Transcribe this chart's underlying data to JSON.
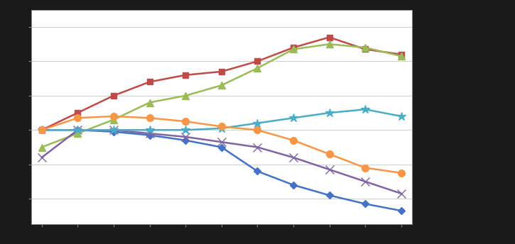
{
  "x_values": [
    1,
    2,
    3,
    4,
    5,
    6,
    7,
    8,
    9,
    10,
    11
  ],
  "series": [
    {
      "name": "",
      "color": "#4472C4",
      "marker": "D",
      "markersize": 5,
      "linewidth": 1.8,
      "values": [
        100,
        100,
        99,
        97,
        94,
        90,
        76,
        68,
        62,
        57,
        53
      ]
    },
    {
      "name": "",
      "color": "#BE4B48",
      "marker": "s",
      "markersize": 6,
      "linewidth": 1.8,
      "values": [
        100,
        110,
        120,
        128,
        132,
        134,
        140,
        148,
        154,
        147,
        144
      ]
    },
    {
      "name": "",
      "color": "#9BBB59",
      "marker": "^",
      "markersize": 7,
      "linewidth": 1.8,
      "values": [
        90,
        98,
        106,
        116,
        120,
        126,
        136,
        147,
        150,
        148,
        143
      ]
    },
    {
      "name": "",
      "color": "#8064A2",
      "marker": "x",
      "markersize": 8,
      "linewidth": 1.8,
      "values": [
        84,
        100,
        100,
        98,
        96,
        93,
        90,
        84,
        77,
        70,
        63
      ]
    },
    {
      "name": "",
      "color": "#4BACC6",
      "marker": "*",
      "markersize": 9,
      "linewidth": 1.8,
      "values": [
        100,
        100,
        100,
        100,
        100,
        101,
        104,
        107,
        110,
        112,
        108
      ]
    },
    {
      "name": "",
      "color": "#F79646",
      "marker": "o",
      "markersize": 7,
      "linewidth": 1.8,
      "values": [
        100,
        107,
        108,
        107,
        105,
        102,
        100,
        94,
        86,
        78,
        75
      ]
    }
  ],
  "xlim": [
    0.7,
    11.3
  ],
  "ylim": [
    45,
    170
  ],
  "xticks": [
    1,
    2,
    3,
    4,
    5,
    6,
    7,
    8,
    9,
    10,
    11
  ],
  "yticks": [
    60,
    80,
    100,
    120,
    140,
    160
  ],
  "grid_color": "#D0D0D0",
  "plot_bg": "#FFFFFF",
  "fig_bg": "#1a1a1a"
}
